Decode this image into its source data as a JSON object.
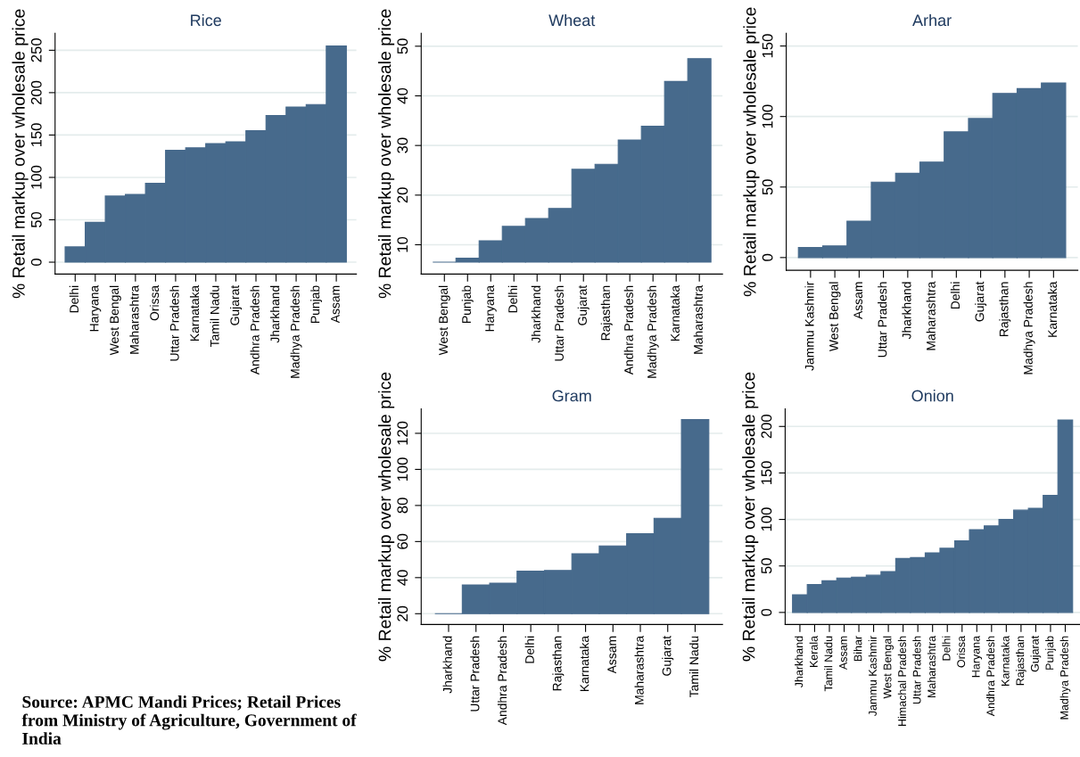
{
  "chart_data": [
    {
      "type": "bar",
      "title": "Rice",
      "ylabel": "% Retail markup over wholesale price",
      "categories": [
        "Delhi",
        "Haryana",
        "West Bengal",
        "Maharashtra",
        "Orissa",
        "Uttar Pradesh",
        "Karnataka",
        "Tamil Nadu",
        "Gujarat",
        "Andhra Pradesh",
        "Jharkhand",
        "Madhya Pradesh",
        "Punjab",
        "Assam"
      ],
      "values": [
        18,
        47,
        78,
        80,
        93,
        132,
        135,
        140,
        142,
        155,
        173,
        183,
        186,
        255
      ],
      "color": "#476a8c",
      "ylim": [
        -14,
        270
      ],
      "yticks": [
        0,
        50,
        100,
        150,
        200,
        250
      ],
      "grid": "y",
      "annotations": [
        "Source: APMC Mandi Prices; Retail Prices from Ministry of Agriculture, Government of India"
      ]
    },
    {
      "type": "bar",
      "title": "Wheat",
      "ylabel": "% Retail markup over wholesale price",
      "categories": [
        "West Bengal",
        "Punjab",
        "Haryana",
        "Delhi",
        "Jharkhand",
        "Uttar Pradesh",
        "Gujarat",
        "Rajasthan",
        "Andhra Pradesh",
        "Madhya Pradesh",
        "Karnataka",
        "Maharashtra"
      ],
      "base": [
        6.5,
        6.5,
        6.5,
        6.5,
        6.5,
        6.5,
        6.5,
        6.5,
        6.5,
        6.5,
        6.5,
        6.5
      ],
      "values": [
        0,
        0.8,
        4.3,
        7.2,
        8.8,
        10.8,
        18.7,
        19.7,
        24.6,
        27.4,
        36.4,
        41.0
      ],
      "color": "#476a8c",
      "ylim": [
        4.1,
        52.6
      ],
      "yticks": [
        10,
        20,
        30,
        40,
        50
      ],
      "grid": "y"
    },
    {
      "type": "bar",
      "title": "Arhar",
      "ylabel": "% Retail markup over wholesale price",
      "categories": [
        "Jammu Kashmir",
        "West Bengal",
        "Assam",
        "Uttar Pradesh",
        "Jharkhand",
        "Maharashtra",
        "Delhi",
        "Gujarat",
        "Rajasthan",
        "Madhya Pradesh",
        "Karnataka"
      ],
      "values": [
        7.2,
        8.3,
        25.8,
        53.5,
        59.7,
        67.7,
        89.1,
        98.6,
        116.4,
        119.8,
        123.8
      ],
      "color": "#476a8c",
      "ylim": [
        -9,
        159
      ],
      "yticks": [
        0,
        50,
        100,
        150
      ],
      "grid": "y"
    },
    {
      "type": "bar",
      "title": "Gram",
      "ylabel": "% Retail markup over wholesale price",
      "categories": [
        "Jharkhand",
        "Uttar Pradesh",
        "Andhra Pradesh",
        "Delhi",
        "Rajasthan",
        "Karnataka",
        "Assam",
        "Maharashtra",
        "Gujarat",
        "Tamil Nadu"
      ],
      "base": [
        20,
        20,
        20,
        20,
        20,
        20,
        20,
        20,
        20,
        20
      ],
      "values": [
        0,
        15.9,
        16.9,
        23.6,
        24.0,
        33.2,
        37.6,
        44.4,
        52.9,
        107.6
      ],
      "color": "#476a8c",
      "ylim": [
        14,
        133.6
      ],
      "yticks": [
        20,
        40,
        60,
        80,
        100,
        120
      ],
      "grid": "y"
    },
    {
      "type": "bar",
      "title": "Onion",
      "ylabel": "% Retail markup over wholesale price",
      "categories": [
        "Jharkhand",
        "Kerala",
        "Tamil Nadu",
        "Assam",
        "Bihar",
        "Jammu Kashmir",
        "West Bengal",
        "Himachal Pradesh",
        "Uttar Pradesh",
        "Maharashtra",
        "Delhi",
        "Orissa",
        "Haryana",
        "Andhra Pradesh",
        "Karnataka",
        "Rajasthan",
        "Gujarat",
        "Punjab",
        "Madhya Pradesh"
      ],
      "values": [
        19,
        30,
        34,
        37,
        38,
        40,
        44,
        58,
        59,
        64,
        69,
        77,
        89,
        93,
        100,
        110,
        112,
        126,
        207
      ],
      "color": "#476a8c",
      "ylim": [
        -13,
        219
      ],
      "yticks": [
        0,
        50,
        100,
        150,
        200
      ],
      "grid": "y"
    }
  ]
}
